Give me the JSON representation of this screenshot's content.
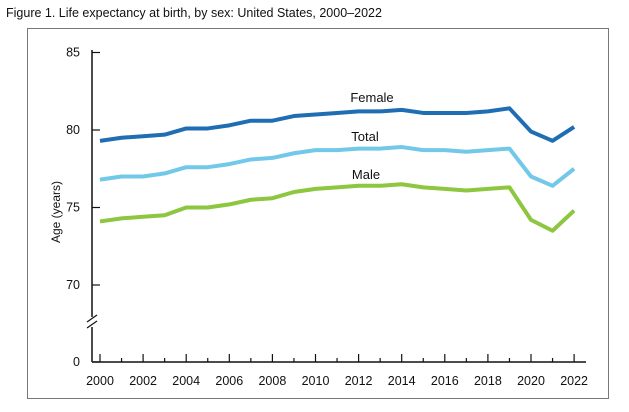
{
  "chart_data": {
    "type": "line",
    "title": "Figure 1. Life expectancy at birth, by sex: United States, 2000–2022",
    "xlabel": "",
    "ylabel": "Age (years)",
    "ylim": [
      0,
      85
    ],
    "y_break": [
      0,
      67
    ],
    "yticks": [
      "0",
      "70",
      "75",
      "80",
      "85"
    ],
    "x": [
      2000,
      2001,
      2002,
      2003,
      2004,
      2005,
      2006,
      2007,
      2008,
      2009,
      2010,
      2011,
      2012,
      2013,
      2014,
      2015,
      2016,
      2017,
      2018,
      2019,
      2020,
      2021,
      2022
    ],
    "xticks": [
      "2000",
      "2002",
      "2004",
      "2006",
      "2008",
      "2010",
      "2012",
      "2014",
      "2016",
      "2018",
      "2020",
      "2022"
    ],
    "grid": false,
    "legend": "inline labels",
    "series": [
      {
        "name": "Female",
        "color": "#1f6db3",
        "values": [
          79.3,
          79.5,
          79.6,
          79.7,
          80.1,
          80.1,
          80.3,
          80.6,
          80.6,
          80.9,
          81.0,
          81.1,
          81.2,
          81.2,
          81.3,
          81.1,
          81.1,
          81.1,
          81.2,
          81.4,
          79.9,
          79.3,
          80.2
        ]
      },
      {
        "name": "Total",
        "color": "#72c8e8",
        "values": [
          76.8,
          77.0,
          77.0,
          77.2,
          77.6,
          77.6,
          77.8,
          78.1,
          78.2,
          78.5,
          78.7,
          78.7,
          78.8,
          78.8,
          78.9,
          78.7,
          78.7,
          78.6,
          78.7,
          78.8,
          77.0,
          76.4,
          77.5
        ]
      },
      {
        "name": "Male",
        "color": "#8dc63f",
        "values": [
          74.1,
          74.3,
          74.4,
          74.5,
          75.0,
          75.0,
          75.2,
          75.5,
          75.6,
          76.0,
          76.2,
          76.3,
          76.4,
          76.4,
          76.5,
          76.3,
          76.2,
          76.1,
          76.2,
          76.3,
          74.2,
          73.5,
          74.8
        ]
      }
    ]
  }
}
